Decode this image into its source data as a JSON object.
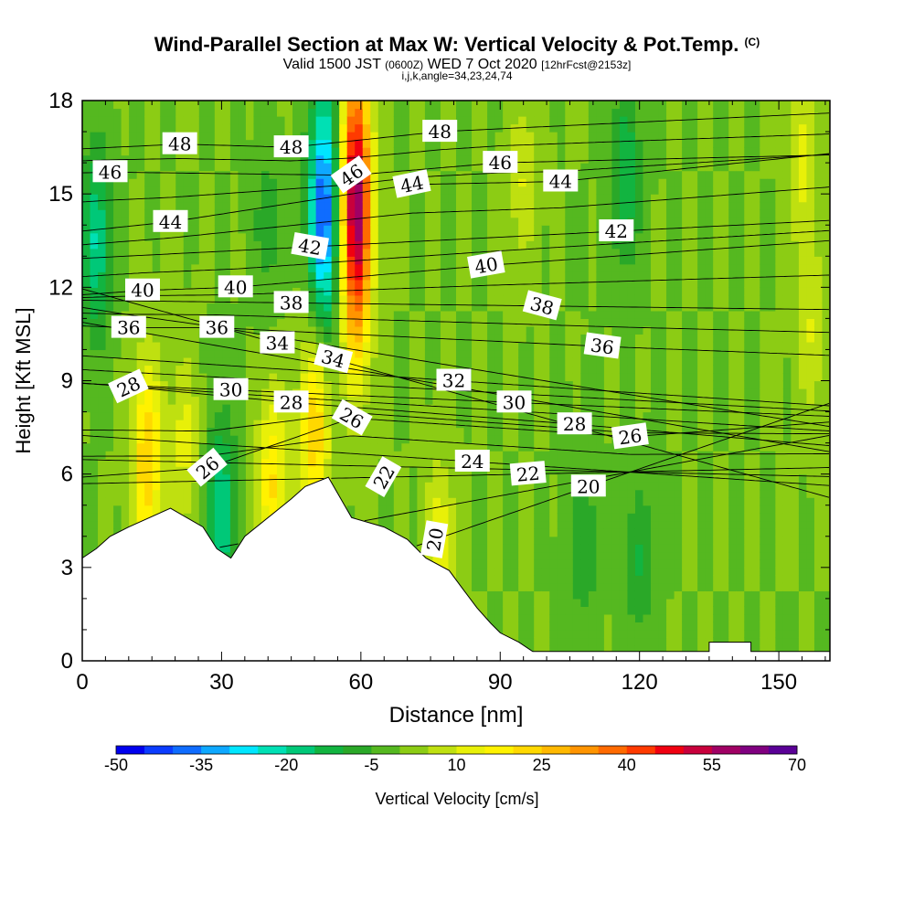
{
  "title": {
    "main": "Wind-Parallel Section at Max W: Vertical Velocity & Pot.Temp.",
    "copyright": "(C)",
    "valid_prefix": "Valid 1500 JST",
    "zulu": "(0600Z)",
    "valid_date": "WED 7 Oct 2020",
    "fcst": "[12hrFcst@2153z]",
    "indices": "i,j,k,angle=34,23,24,74"
  },
  "chart_data": {
    "type": "heatmap",
    "xlabel": "Distance [nm]",
    "ylabel": "Height [Kft MSL]",
    "xlim": [
      0,
      161
    ],
    "ylim": [
      0,
      18
    ],
    "x_ticks": [
      0,
      30,
      60,
      90,
      120,
      150
    ],
    "y_ticks": [
      0,
      3,
      6,
      9,
      12,
      15,
      18
    ],
    "colorbar": {
      "label": "Vertical Velocity [cm/s]",
      "min": -50,
      "max": 70,
      "step": 5,
      "tick_labels": [
        -50,
        -35,
        -20,
        -5,
        10,
        25,
        40,
        55,
        70
      ],
      "colors": [
        "#0000ee",
        "#0b3cff",
        "#0f6cff",
        "#0ea8ff",
        "#00e6ff",
        "#00e0b4",
        "#00c878",
        "#12b440",
        "#2aa828",
        "#55b820",
        "#8ccc14",
        "#bfe010",
        "#e8f008",
        "#fff200",
        "#ffd800",
        "#ffb800",
        "#ff9400",
        "#ff6a00",
        "#ff3a00",
        "#f00010",
        "#c8003c",
        "#a00064",
        "#800080",
        "#5a0096"
      ]
    },
    "terrain_profile": [
      [
        0,
        3.3
      ],
      [
        3,
        3.6
      ],
      [
        6,
        4.0
      ],
      [
        10,
        4.3
      ],
      [
        19,
        4.9
      ],
      [
        26,
        4.3
      ],
      [
        29,
        3.6
      ],
      [
        32,
        3.3
      ],
      [
        35,
        4.0
      ],
      [
        45,
        5.2
      ],
      [
        48,
        5.6
      ],
      [
        53,
        5.9
      ],
      [
        58,
        4.6
      ],
      [
        65,
        4.3
      ],
      [
        70,
        3.9
      ],
      [
        74,
        3.3
      ],
      [
        79,
        2.9
      ],
      [
        82,
        2.3
      ],
      [
        85,
        1.7
      ],
      [
        88,
        1.2
      ],
      [
        90,
        0.9
      ],
      [
        94,
        0.6
      ],
      [
        97,
        0.3
      ],
      [
        135,
        0.3
      ],
      [
        135,
        0.6
      ],
      [
        144,
        0.6
      ],
      [
        144,
        0.3
      ],
      [
        161,
        0.3
      ]
    ],
    "w_field": {
      "background": 0,
      "updrafts": [
        {
          "x": 59,
          "z": 14.5,
          "w": 60
        },
        {
          "x": 14,
          "z": 6.5,
          "w": 25
        },
        {
          "x": 50,
          "z": 7.5,
          "w": 25
        },
        {
          "x": 41,
          "z": 5.8,
          "w": 20
        },
        {
          "x": 77,
          "z": 3.6,
          "w": 15
        },
        {
          "x": 22,
          "z": 7.0,
          "w": 12
        },
        {
          "x": 95,
          "z": 15.5,
          "w": 10
        },
        {
          "x": 155,
          "z": 16.0,
          "w": 12
        },
        {
          "x": 157,
          "z": 10.5,
          "w": 10
        }
      ],
      "downdrafts": [
        {
          "x": 52,
          "z": 14.5,
          "w": -40
        },
        {
          "x": 3,
          "z": 13.5,
          "w": -20
        },
        {
          "x": 117,
          "z": 15.5,
          "w": -15
        },
        {
          "x": 30,
          "z": 4.8,
          "w": -20
        },
        {
          "x": 120,
          "z": 3.2,
          "w": -10
        },
        {
          "x": 108,
          "z": 3.8,
          "w": -10
        },
        {
          "x": 40,
          "z": 14.0,
          "w": -8
        }
      ]
    },
    "theta_contour_labels": [
      {
        "v": "48",
        "x": 21,
        "z": 16.6,
        "rot": 0
      },
      {
        "v": "48",
        "x": 45,
        "z": 16.5,
        "rot": 0
      },
      {
        "v": "48",
        "x": 77,
        "z": 17.0,
        "rot": 0
      },
      {
        "v": "46",
        "x": 6,
        "z": 15.7,
        "rot": 0
      },
      {
        "v": "46",
        "x": 58,
        "z": 15.6,
        "rot": -35
      },
      {
        "v": "46",
        "x": 90,
        "z": 16.0,
        "rot": 0
      },
      {
        "v": "44",
        "x": 19,
        "z": 14.1,
        "rot": 0
      },
      {
        "v": "44",
        "x": 71,
        "z": 15.3,
        "rot": -12
      },
      {
        "v": "44",
        "x": 103,
        "z": 15.4,
        "rot": 0
      },
      {
        "v": "42",
        "x": 49,
        "z": 13.3,
        "rot": 10
      },
      {
        "v": "42",
        "x": 115,
        "z": 13.8,
        "rot": 0
      },
      {
        "v": "40",
        "x": 13,
        "z": 11.9,
        "rot": 0
      },
      {
        "v": "40",
        "x": 33,
        "z": 12.0,
        "rot": 0
      },
      {
        "v": "40",
        "x": 87,
        "z": 12.7,
        "rot": -10
      },
      {
        "v": "38",
        "x": 45,
        "z": 11.5,
        "rot": 0
      },
      {
        "v": "38",
        "x": 99,
        "z": 11.4,
        "rot": 15
      },
      {
        "v": "36",
        "x": 10,
        "z": 10.7,
        "rot": 0
      },
      {
        "v": "36",
        "x": 29,
        "z": 10.7,
        "rot": 0
      },
      {
        "v": "36",
        "x": 112,
        "z": 10.1,
        "rot": 8
      },
      {
        "v": "34",
        "x": 42,
        "z": 10.2,
        "rot": 0
      },
      {
        "v": "34",
        "x": 54,
        "z": 9.7,
        "rot": 15
      },
      {
        "v": "32",
        "x": 80,
        "z": 9.0,
        "rot": 0
      },
      {
        "v": "30",
        "x": 32,
        "z": 8.7,
        "rot": 0
      },
      {
        "v": "30",
        "x": 93,
        "z": 8.3,
        "rot": 0
      },
      {
        "v": "28",
        "x": 10,
        "z": 8.8,
        "rot": -25
      },
      {
        "v": "28",
        "x": 45,
        "z": 8.3,
        "rot": 0
      },
      {
        "v": "28",
        "x": 106,
        "z": 7.6,
        "rot": 0
      },
      {
        "v": "26",
        "x": 58,
        "z": 7.8,
        "rot": 30
      },
      {
        "v": "26",
        "x": 27,
        "z": 6.2,
        "rot": -40
      },
      {
        "v": "26",
        "x": 118,
        "z": 7.2,
        "rot": -8
      },
      {
        "v": "24",
        "x": 84,
        "z": 6.4,
        "rot": 0
      },
      {
        "v": "22",
        "x": 65,
        "z": 5.9,
        "rot": -60
      },
      {
        "v": "22",
        "x": 96,
        "z": 6.0,
        "rot": -5
      },
      {
        "v": "20",
        "x": 109,
        "z": 5.6,
        "rot": 0
      },
      {
        "v": "20",
        "x": 76,
        "z": 3.9,
        "rot": -80
      }
    ]
  }
}
